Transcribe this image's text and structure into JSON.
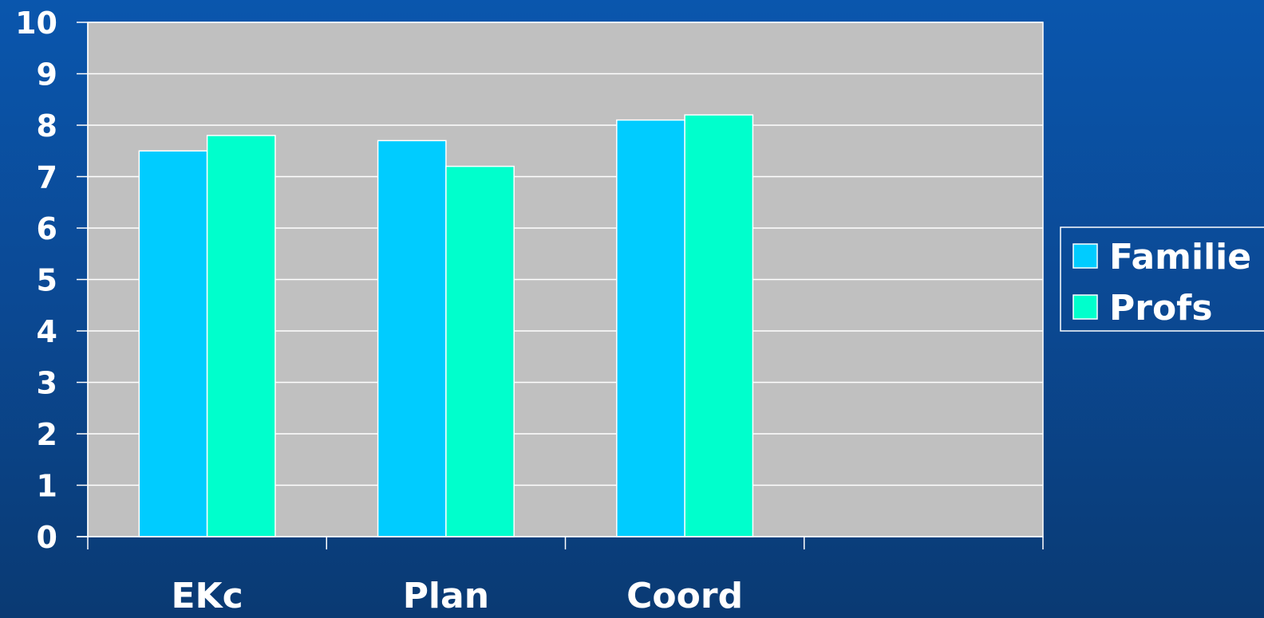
{
  "chart_data": {
    "type": "bar",
    "categories": [
      "EKc",
      "Plan",
      "Coord",
      ""
    ],
    "series": [
      {
        "name": "Familie",
        "color": "#00ccff",
        "values": [
          7.5,
          7.7,
          8.1,
          null
        ]
      },
      {
        "name": "Profs",
        "color": "#00ffcc",
        "values": [
          7.8,
          7.2,
          8.2,
          null
        ]
      }
    ],
    "ylim": [
      0,
      10
    ],
    "yticks": [
      "0",
      "1",
      "2",
      "3",
      "4",
      "5",
      "6",
      "7",
      "8",
      "9",
      "10"
    ],
    "grid": true,
    "plot_background": "#c0c0c0",
    "legend_position": "right"
  }
}
